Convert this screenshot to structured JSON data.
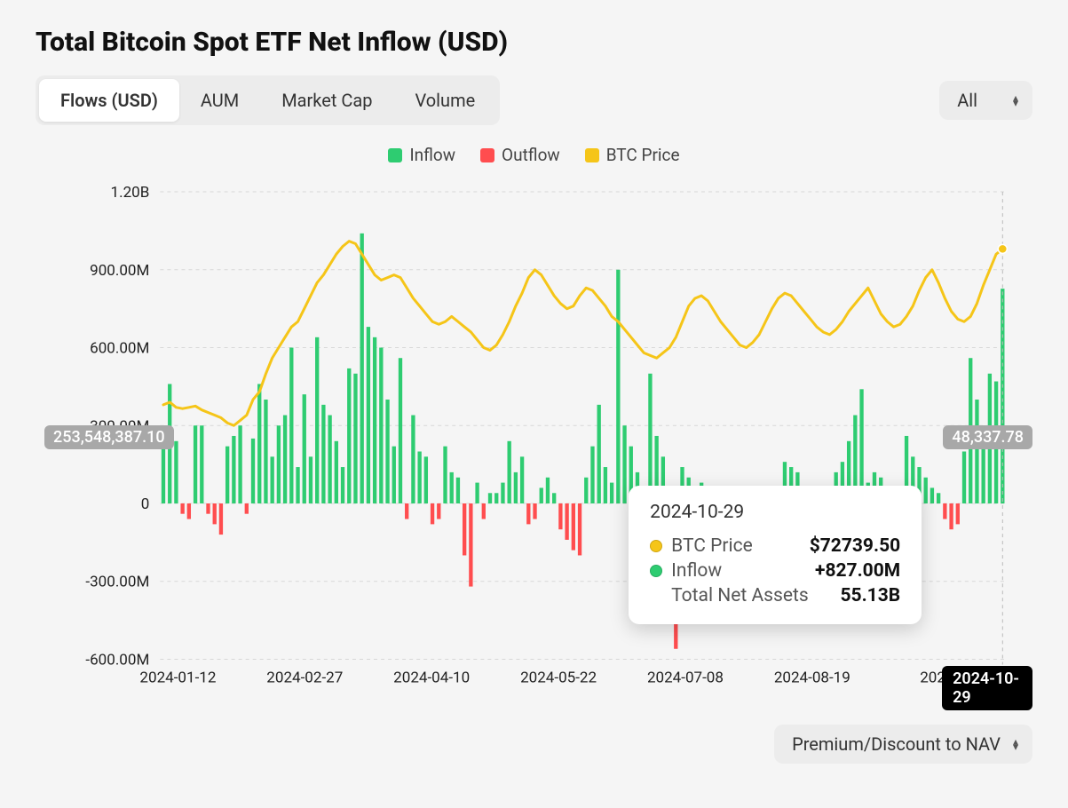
{
  "title": "Total Bitcoin Spot ETF Net Inflow (USD)",
  "tabs": [
    {
      "label": "Flows (USD)",
      "active": true
    },
    {
      "label": "AUM",
      "active": false
    },
    {
      "label": "Market Cap",
      "active": false
    },
    {
      "label": "Volume",
      "active": false
    }
  ],
  "range_selector": {
    "label": "All"
  },
  "nav_selector": {
    "label": "Premium/Discount to NAV"
  },
  "legend": [
    {
      "label": "Inflow",
      "color": "#2ecc71"
    },
    {
      "label": "Outflow",
      "color": "#ff4d4f"
    },
    {
      "label": "BTC Price",
      "color": "#f5c518"
    }
  ],
  "left_axis_tag": "253,548,387.10",
  "right_axis_tag": "48,337.78",
  "x_active_tag": "2024-10-29",
  "tooltip": {
    "date": "2024-10-29",
    "rows": [
      {
        "dot_color": "#f5c518",
        "label": "BTC Price",
        "value": "$72739.50"
      },
      {
        "dot_color": "#2ecc71",
        "label": "Inflow",
        "value": "+827.00M"
      },
      {
        "dot_color": null,
        "label": "Total Net Assets",
        "value": "55.13B"
      }
    ]
  },
  "chart": {
    "type": "bar+line",
    "background_color": "#f5f5f5",
    "grid_color": "#d8d8d8",
    "inflow_color": "#2ecc71",
    "outflow_color": "#ff4d4f",
    "line_color": "#f5c518",
    "line_width": 3,
    "bar_width_ratio": 0.6,
    "axis_font_size": 17,
    "axis_color": "#222222",
    "y": {
      "min": -600,
      "max": 1200,
      "ticks": [
        -600,
        -300,
        0,
        300,
        600,
        900,
        1200
      ],
      "tick_labels": [
        "-600.00M",
        "-300.00M",
        "0",
        "300.00M",
        "600.00M",
        "900.00M",
        "1.20B"
      ]
    },
    "x_tick_labels": [
      "2024-01-12",
      "2024-02-27",
      "2024-04-10",
      "2024-05-22",
      "2024-07-08",
      "2024-08-19",
      "2024-"
    ],
    "btc_price_line": [
      380,
      390,
      370,
      365,
      370,
      375,
      360,
      350,
      340,
      330,
      310,
      300,
      320,
      340,
      400,
      430,
      500,
      560,
      600,
      640,
      680,
      700,
      750,
      800,
      850,
      880,
      920,
      960,
      990,
      1010,
      1000,
      960,
      920,
      880,
      860,
      870,
      880,
      870,
      830,
      790,
      760,
      730,
      700,
      690,
      700,
      720,
      700,
      680,
      660,
      630,
      600,
      590,
      610,
      650,
      700,
      760,
      810,
      870,
      900,
      880,
      840,
      800,
      770,
      750,
      760,
      800,
      830,
      820,
      790,
      760,
      720,
      700,
      670,
      640,
      610,
      580,
      570,
      560,
      580,
      600,
      640,
      700,
      760,
      790,
      800,
      780,
      740,
      700,
      670,
      640,
      610,
      600,
      620,
      650,
      700,
      750,
      790,
      810,
      800,
      770,
      740,
      710,
      680,
      660,
      650,
      670,
      700,
      740,
      770,
      800,
      830,
      780,
      730,
      700,
      680,
      690,
      720,
      760,
      820,
      870,
      900,
      850,
      790,
      740,
      710,
      700,
      720,
      770,
      840,
      900,
      960,
      980
    ],
    "flows": [
      280,
      460,
      240,
      -40,
      -60,
      300,
      300,
      -40,
      -80,
      -120,
      220,
      260,
      300,
      -40,
      250,
      460,
      400,
      180,
      300,
      340,
      600,
      140,
      420,
      180,
      640,
      380,
      340,
      240,
      140,
      520,
      500,
      1040,
      680,
      640,
      600,
      400,
      220,
      560,
      -60,
      340,
      200,
      180,
      -80,
      -60,
      220,
      120,
      100,
      -200,
      -320,
      80,
      -60,
      40,
      40,
      80,
      240,
      120,
      180,
      -80,
      -60,
      60,
      100,
      40,
      -100,
      -140,
      -180,
      -200,
      100,
      220,
      380,
      140,
      80,
      900,
      300,
      220,
      120,
      -60,
      500,
      260,
      180,
      -60,
      -560,
      140,
      100,
      40,
      80,
      -100,
      -80,
      -40,
      40,
      20,
      40,
      -120,
      -80,
      -60,
      -180,
      -120,
      -40,
      160,
      140,
      120,
      -120,
      -100,
      -60,
      60,
      40,
      120,
      160,
      240,
      340,
      440,
      80,
      120,
      100,
      -60,
      -80,
      40,
      260,
      180,
      140,
      100,
      60,
      40,
      -60,
      -100,
      -80,
      200,
      560,
      400,
      300,
      500,
      470,
      827
    ]
  }
}
